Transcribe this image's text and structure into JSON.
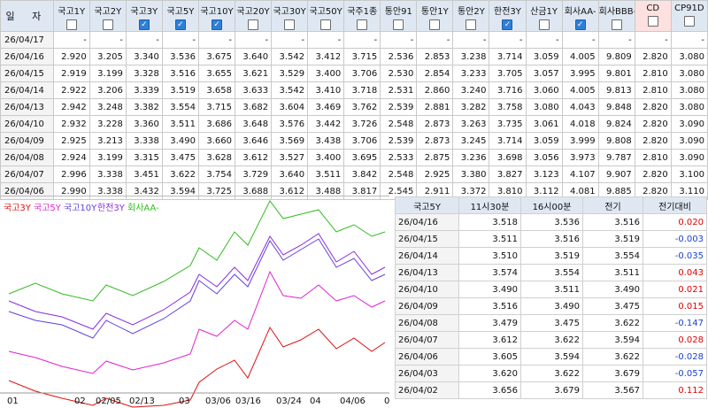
{
  "top_table": {
    "date_header": "일 자",
    "columns": [
      {
        "label": "국고1Y",
        "checked": false
      },
      {
        "label": "국고2Y",
        "checked": false
      },
      {
        "label": "국고3Y",
        "checked": true
      },
      {
        "label": "국고5Y",
        "checked": true
      },
      {
        "label": "국고10Y",
        "checked": true
      },
      {
        "label": "국고20Y",
        "checked": false
      },
      {
        "label": "국고30Y",
        "checked": false
      },
      {
        "label": "국고50Y",
        "checked": false
      },
      {
        "label": "국주1종",
        "checked": false
      },
      {
        "label": "통안91",
        "checked": false
      },
      {
        "label": "통안1Y",
        "checked": false
      },
      {
        "label": "통안2Y",
        "checked": false
      },
      {
        "label": "한전3Y",
        "checked": true
      },
      {
        "label": "산금1Y",
        "checked": false
      },
      {
        "label": "회사AA-",
        "checked": true
      },
      {
        "label": "회사BBB-",
        "checked": false
      },
      {
        "label": "CD",
        "checked": false
      },
      {
        "label": "CP91D",
        "checked": false
      }
    ],
    "rows": [
      {
        "date": "26/04/17",
        "values": [
          "-",
          "-",
          "-",
          "-",
          "-",
          "-",
          "-",
          "-",
          "-",
          "-",
          "-",
          "-",
          "-",
          "-",
          "-",
          "-",
          "-",
          "-"
        ]
      },
      {
        "date": "26/04/16",
        "values": [
          "2.920",
          "3.205",
          "3.340",
          "3.536",
          "3.675",
          "3.640",
          "3.542",
          "3.412",
          "3.715",
          "2.536",
          "2.853",
          "3.238",
          "3.714",
          "3.059",
          "4.005",
          "9.809",
          "2.820",
          "3.080"
        ]
      },
      {
        "date": "26/04/15",
        "values": [
          "2.919",
          "3.199",
          "3.328",
          "3.516",
          "3.655",
          "3.621",
          "3.529",
          "3.400",
          "3.706",
          "2.530",
          "2.854",
          "3.233",
          "3.705",
          "3.057",
          "3.995",
          "9.801",
          "2.810",
          "3.080"
        ]
      },
      {
        "date": "26/04/14",
        "values": [
          "2.922",
          "3.206",
          "3.339",
          "3.519",
          "3.658",
          "3.633",
          "3.542",
          "3.410",
          "3.718",
          "2.531",
          "2.860",
          "3.240",
          "3.716",
          "3.060",
          "4.005",
          "9.813",
          "2.810",
          "3.080"
        ]
      },
      {
        "date": "26/04/13",
        "values": [
          "2.942",
          "3.248",
          "3.382",
          "3.554",
          "3.715",
          "3.682",
          "3.604",
          "3.469",
          "3.762",
          "2.539",
          "2.881",
          "3.282",
          "3.758",
          "3.080",
          "4.043",
          "9.848",
          "2.820",
          "3.080"
        ]
      },
      {
        "date": "26/04/10",
        "values": [
          "2.932",
          "3.228",
          "3.360",
          "3.511",
          "3.686",
          "3.648",
          "3.576",
          "3.442",
          "3.726",
          "2.548",
          "2.873",
          "3.263",
          "3.735",
          "3.061",
          "4.018",
          "9.824",
          "2.820",
          "3.090"
        ]
      },
      {
        "date": "26/04/09",
        "values": [
          "2.925",
          "3.213",
          "3.338",
          "3.490",
          "3.660",
          "3.646",
          "3.569",
          "3.438",
          "3.706",
          "2.539",
          "2.873",
          "3.245",
          "3.714",
          "3.059",
          "3.999",
          "9.808",
          "2.820",
          "3.090"
        ]
      },
      {
        "date": "26/04/08",
        "values": [
          "2.924",
          "3.199",
          "3.315",
          "3.475",
          "3.628",
          "3.612",
          "3.527",
          "3.400",
          "3.695",
          "2.533",
          "2.875",
          "3.236",
          "3.698",
          "3.056",
          "3.973",
          "9.787",
          "2.810",
          "3.090"
        ]
      },
      {
        "date": "26/04/07",
        "values": [
          "2.996",
          "3.338",
          "3.451",
          "3.622",
          "3.754",
          "3.729",
          "3.640",
          "3.511",
          "3.842",
          "2.548",
          "2.925",
          "3.380",
          "3.827",
          "3.123",
          "4.107",
          "9.907",
          "2.820",
          "3.100"
        ]
      },
      {
        "date": "26/04/06",
        "values": [
          "2.990",
          "3.338",
          "3.432",
          "3.594",
          "3.725",
          "3.688",
          "3.612",
          "3.488",
          "3.817",
          "2.545",
          "2.911",
          "3.372",
          "3.810",
          "3.112",
          "4.081",
          "9.885",
          "2.820",
          "3.110"
        ]
      }
    ]
  },
  "chart": {
    "legend": [
      {
        "label": "국고3Y",
        "color": "#e01010"
      },
      {
        "label": "국고5Y",
        "color": "#e020d0"
      },
      {
        "label": "국고10Y",
        "color": "#6040e0"
      },
      {
        "label": "한전3Y",
        "color": "#8a2be2"
      },
      {
        "label": "회사AA-",
        "color": "#33bb22"
      }
    ],
    "x_ticks": [
      "01",
      "02",
      "02/05",
      "02/13",
      "03",
      "03/06",
      "03/16",
      "03/24",
      "04",
      "04/06",
      "0"
    ]
  },
  "right_table": {
    "headers": [
      "국고5Y",
      "11시30분",
      "16시00분",
      "전기",
      "전기대비"
    ],
    "rows": [
      {
        "date": "26/04/16",
        "a": "3.518",
        "b": "3.536",
        "c": "3.516",
        "d": "0.020",
        "sign": "pos"
      },
      {
        "date": "26/04/15",
        "a": "3.511",
        "b": "3.516",
        "c": "3.519",
        "d": "-0.003",
        "sign": "neg"
      },
      {
        "date": "26/04/14",
        "a": "3.510",
        "b": "3.519",
        "c": "3.554",
        "d": "-0.035",
        "sign": "neg"
      },
      {
        "date": "26/04/13",
        "a": "3.574",
        "b": "3.554",
        "c": "3.511",
        "d": "0.043",
        "sign": "pos"
      },
      {
        "date": "26/04/10",
        "a": "3.490",
        "b": "3.511",
        "c": "3.490",
        "d": "0.021",
        "sign": "pos"
      },
      {
        "date": "26/04/09",
        "a": "3.516",
        "b": "3.490",
        "c": "3.475",
        "d": "0.015",
        "sign": "pos"
      },
      {
        "date": "26/04/08",
        "a": "3.479",
        "b": "3.475",
        "c": "3.622",
        "d": "-0.147",
        "sign": "neg"
      },
      {
        "date": "26/04/07",
        "a": "3.612",
        "b": "3.622",
        "c": "3.594",
        "d": "0.028",
        "sign": "pos"
      },
      {
        "date": "26/04/06",
        "a": "3.605",
        "b": "3.594",
        "c": "3.622",
        "d": "-0.028",
        "sign": "neg"
      },
      {
        "date": "26/04/03",
        "a": "3.620",
        "b": "3.622",
        "c": "3.679",
        "d": "-0.057",
        "sign": "neg"
      },
      {
        "date": "26/04/02",
        "a": "3.656",
        "b": "3.679",
        "c": "3.567",
        "d": "0.112",
        "sign": "pos"
      }
    ]
  }
}
